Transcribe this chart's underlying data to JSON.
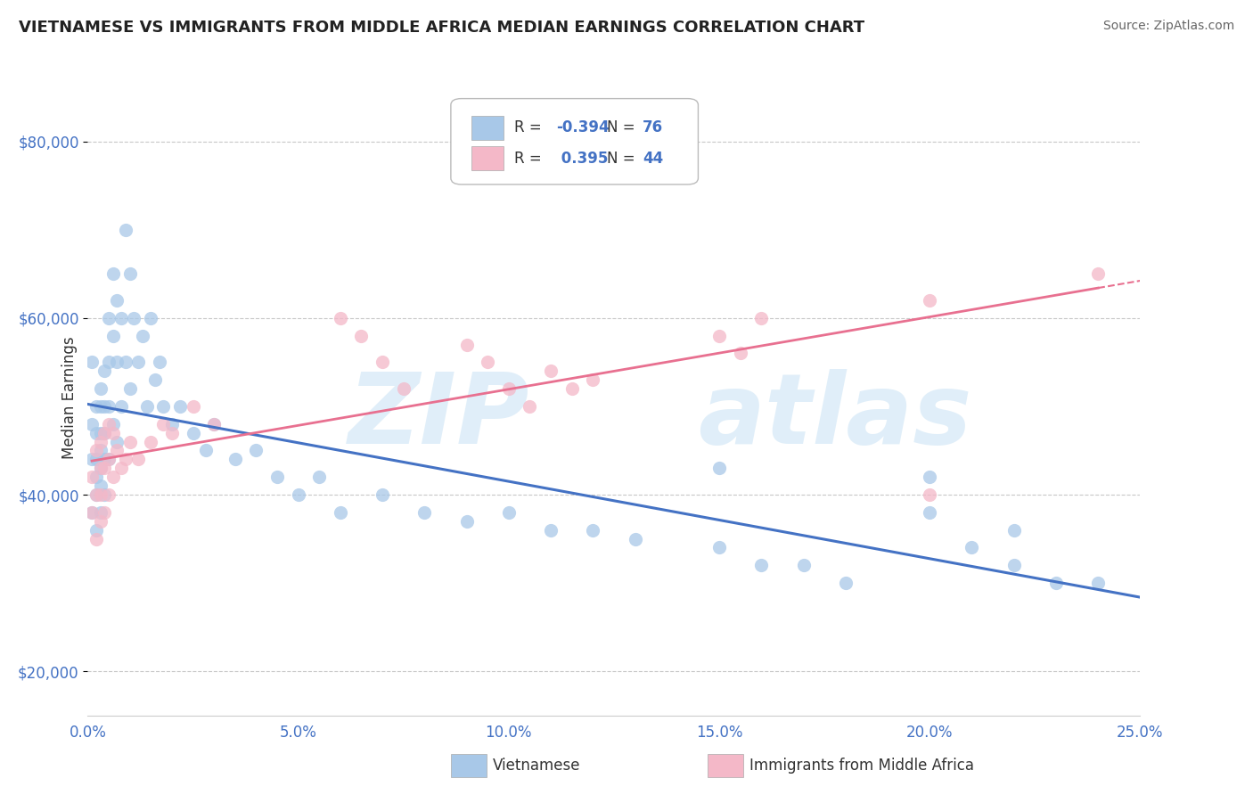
{
  "title": "VIETNAMESE VS IMMIGRANTS FROM MIDDLE AFRICA MEDIAN EARNINGS CORRELATION CHART",
  "source": "Source: ZipAtlas.com",
  "ylabel": "Median Earnings",
  "xlim": [
    0.0,
    0.25
  ],
  "ylim": [
    15000,
    87000
  ],
  "yticks": [
    20000,
    40000,
    60000,
    80000
  ],
  "xticks": [
    0.0,
    0.05,
    0.1,
    0.15,
    0.2,
    0.25
  ],
  "xtick_labels": [
    "0.0%",
    "5.0%",
    "10.0%",
    "15.0%",
    "20.0%",
    "25.0%"
  ],
  "ytick_labels": [
    "$20,000",
    "$40,000",
    "$60,000",
    "$80,000"
  ],
  "blue_color": "#a8c8e8",
  "pink_color": "#f4b8c8",
  "blue_line_color": "#4472c4",
  "pink_line_color": "#e87090",
  "axis_color": "#4472c4",
  "background_color": "#ffffff",
  "grid_color": "#c8c8c8",
  "viet_x": [
    0.001,
    0.001,
    0.001,
    0.001,
    0.002,
    0.002,
    0.002,
    0.002,
    0.002,
    0.002,
    0.003,
    0.003,
    0.003,
    0.003,
    0.003,
    0.003,
    0.003,
    0.004,
    0.004,
    0.004,
    0.004,
    0.004,
    0.005,
    0.005,
    0.005,
    0.005,
    0.006,
    0.006,
    0.006,
    0.007,
    0.007,
    0.007,
    0.008,
    0.008,
    0.009,
    0.009,
    0.01,
    0.01,
    0.011,
    0.012,
    0.013,
    0.014,
    0.015,
    0.016,
    0.017,
    0.018,
    0.02,
    0.022,
    0.025,
    0.028,
    0.03,
    0.035,
    0.04,
    0.045,
    0.05,
    0.055,
    0.06,
    0.07,
    0.08,
    0.09,
    0.1,
    0.11,
    0.12,
    0.13,
    0.15,
    0.16,
    0.17,
    0.18,
    0.2,
    0.21,
    0.22,
    0.23,
    0.2,
    0.22,
    0.24,
    0.15
  ],
  "viet_y": [
    55000,
    48000,
    44000,
    38000,
    50000,
    47000,
    44000,
    42000,
    40000,
    36000,
    52000,
    50000,
    47000,
    45000,
    43000,
    41000,
    38000,
    54000,
    50000,
    47000,
    44000,
    40000,
    60000,
    55000,
    50000,
    44000,
    65000,
    58000,
    48000,
    62000,
    55000,
    46000,
    60000,
    50000,
    70000,
    55000,
    65000,
    52000,
    60000,
    55000,
    58000,
    50000,
    60000,
    53000,
    55000,
    50000,
    48000,
    50000,
    47000,
    45000,
    48000,
    44000,
    45000,
    42000,
    40000,
    42000,
    38000,
    40000,
    38000,
    37000,
    38000,
    36000,
    36000,
    35000,
    34000,
    32000,
    32000,
    30000,
    38000,
    34000,
    32000,
    30000,
    42000,
    36000,
    30000,
    43000
  ],
  "africa_x": [
    0.001,
    0.001,
    0.002,
    0.002,
    0.002,
    0.003,
    0.003,
    0.003,
    0.003,
    0.004,
    0.004,
    0.004,
    0.005,
    0.005,
    0.005,
    0.006,
    0.006,
    0.007,
    0.008,
    0.009,
    0.01,
    0.012,
    0.015,
    0.018,
    0.02,
    0.025,
    0.03,
    0.06,
    0.065,
    0.07,
    0.075,
    0.09,
    0.095,
    0.1,
    0.105,
    0.11,
    0.115,
    0.12,
    0.15,
    0.155,
    0.16,
    0.2,
    0.2,
    0.24
  ],
  "africa_y": [
    42000,
    38000,
    45000,
    40000,
    35000,
    46000,
    43000,
    40000,
    37000,
    47000,
    43000,
    38000,
    48000,
    44000,
    40000,
    47000,
    42000,
    45000,
    43000,
    44000,
    46000,
    44000,
    46000,
    48000,
    47000,
    50000,
    48000,
    60000,
    58000,
    55000,
    52000,
    57000,
    55000,
    52000,
    50000,
    54000,
    52000,
    53000,
    58000,
    56000,
    60000,
    40000,
    62000,
    65000
  ],
  "legend_r1": "R = -0.394",
  "legend_n1": "N = 76",
  "legend_r2": "R =  0.395",
  "legend_n2": "N = 44",
  "legend_label1": "Vietnamese",
  "legend_label2": "Immigrants from Middle Africa",
  "watermark1": "ZIP",
  "watermark2": "atlas"
}
